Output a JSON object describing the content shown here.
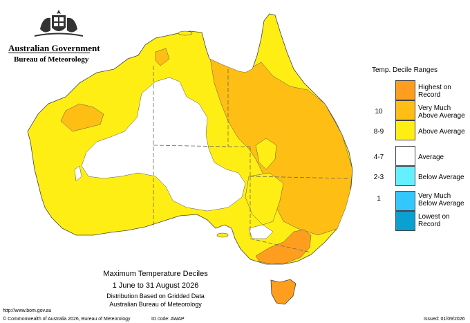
{
  "header": {
    "org_name": "Australian Government",
    "agency_name": "Bureau of Meteorology",
    "crest_icon": "coat-of-arms-icon"
  },
  "legend": {
    "title": "Temp. Decile Ranges",
    "items": [
      {
        "code": "",
        "label_line1": "Highest on",
        "label_line2": "Record",
        "color": "#ff9e1e"
      },
      {
        "code": "10",
        "label_line1": "Very Much",
        "label_line2": "Above Average",
        "color": "#ffbe14"
      },
      {
        "code": "8-9",
        "label_line1": "Above Average",
        "label_line2": "",
        "color": "#ffee14"
      },
      {
        "code": "4-7",
        "label_line1": "Average",
        "label_line2": "",
        "color": "#ffffff"
      },
      {
        "code": "2-3",
        "label_line1": "Below Average",
        "label_line2": "",
        "color": "#64f0ff"
      },
      {
        "code": "1",
        "label_line1": "Very Much",
        "label_line2": "Below Average",
        "color": "#32c8ff"
      },
      {
        "code": "",
        "label_line1": "Lowest on",
        "label_line2": "Record",
        "color": "#0aa0d2"
      }
    ]
  },
  "caption": {
    "title": "Maximum Temperature Deciles",
    "period": "1 June to 31 August 2026",
    "line3": "Distribution Based on Gridded Data",
    "line4": "Australian Bureau of Meteorology"
  },
  "footer": {
    "url": "http://www.bom.gov.au",
    "copyright": "© Commonwealth of Australia 2026, Bureau of Meteorology",
    "id_code": "ID code: AWAP",
    "issued": "Issued: 01/09/2026"
  }
}
